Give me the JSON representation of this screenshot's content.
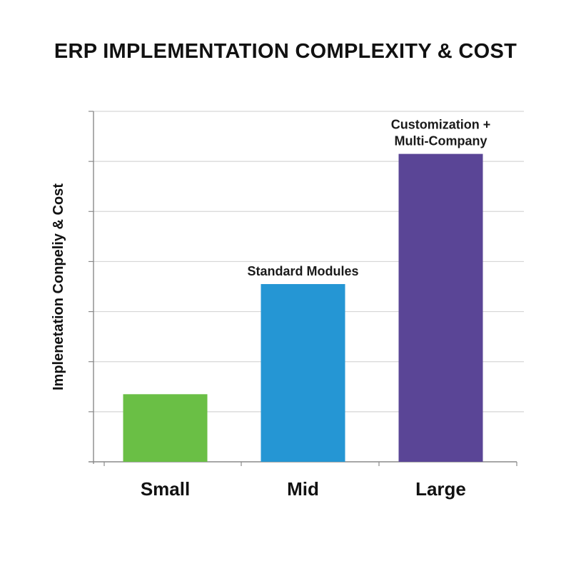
{
  "chart_data": {
    "type": "bar",
    "title": "ERP IMPLEMENTATION COMPLEXITY & COST",
    "ylabel": "Implenetation Conpeliy & Cost",
    "xlabel": "",
    "categories": [
      "Small",
      "Mid",
      "Large"
    ],
    "values": [
      1.35,
      3.55,
      6.15
    ],
    "annotations": [
      "",
      "Standard Modules",
      "Customization +\nMulti-Company"
    ],
    "colors": [
      "#6abf45",
      "#2596d4",
      "#5a4596"
    ],
    "ylim": [
      0,
      7
    ],
    "grid": true,
    "y_tick_labels_shown": false
  }
}
